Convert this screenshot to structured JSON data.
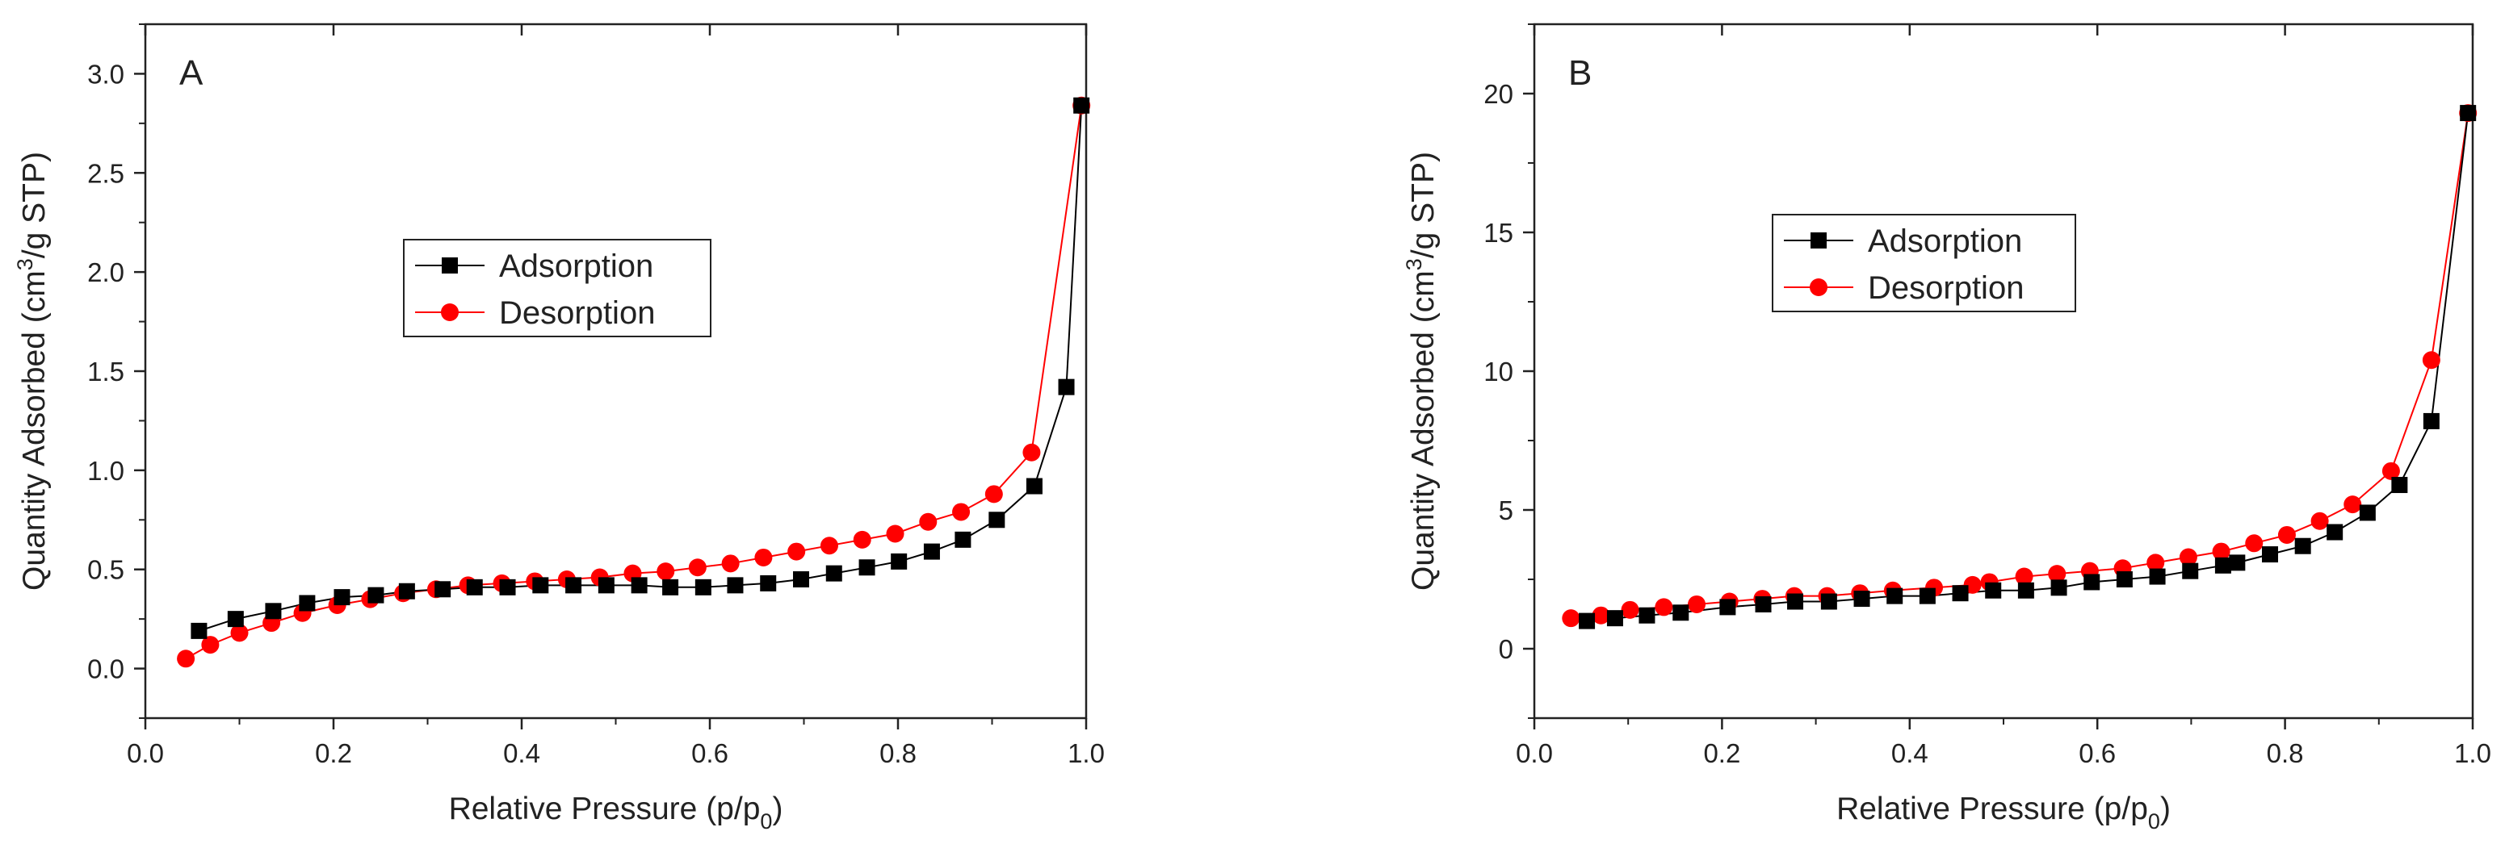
{
  "chart_data": [
    {
      "type": "scatter",
      "panel_label": "A",
      "xlabel": "Relative Pressure (p/p0)",
      "xlabel_main": "Relative Pressure (p/p",
      "xlabel_sub": "0",
      "xlabel_close": ")",
      "ylabel": "Quantity Adsorbed (cm3/g STP)",
      "ylabel_main": "Quantity Adsorbed (cm",
      "ylabel_sup": "3",
      "ylabel_rest": "/g STP)",
      "xlim": [
        0.0,
        1.0
      ],
      "ylim": [
        -0.25,
        3.25
      ],
      "x_ticks": [
        0.0,
        0.2,
        0.4,
        0.6,
        0.8,
        1.0
      ],
      "x_tick_labels": [
        "0.0",
        "0.2",
        "0.4",
        "0.6",
        "0.8",
        "1.0"
      ],
      "y_ticks": [
        0.0,
        0.5,
        1.0,
        1.5,
        2.0,
        2.5,
        3.0
      ],
      "y_tick_labels": [
        "0.0",
        "0.5",
        "1.0",
        "1.5",
        "2.0",
        "2.5",
        "3.0"
      ],
      "legend_position": "center-left",
      "series": [
        {
          "name": "Adsorption",
          "marker": "square",
          "color": "#000000",
          "x": [
            0.057,
            0.096,
            0.136,
            0.172,
            0.209,
            0.245,
            0.278,
            0.316,
            0.35,
            0.385,
            0.42,
            0.455,
            0.49,
            0.525,
            0.558,
            0.593,
            0.627,
            0.662,
            0.697,
            0.732,
            0.767,
            0.801,
            0.836,
            0.869,
            0.905,
            0.945,
            0.979,
            0.995
          ],
          "y": [
            0.19,
            0.25,
            0.29,
            0.33,
            0.36,
            0.37,
            0.39,
            0.4,
            0.41,
            0.41,
            0.42,
            0.42,
            0.42,
            0.42,
            0.41,
            0.41,
            0.42,
            0.43,
            0.45,
            0.48,
            0.51,
            0.54,
            0.59,
            0.65,
            0.75,
            0.92,
            1.42,
            2.84
          ]
        },
        {
          "name": "Desorption",
          "marker": "circle",
          "color": "#ff0000",
          "x": [
            0.043,
            0.069,
            0.1,
            0.134,
            0.167,
            0.204,
            0.239,
            0.274,
            0.309,
            0.343,
            0.379,
            0.414,
            0.448,
            0.483,
            0.518,
            0.553,
            0.587,
            0.622,
            0.657,
            0.692,
            0.727,
            0.762,
            0.797,
            0.832,
            0.867,
            0.902,
            0.942,
            0.995
          ],
          "y": [
            0.05,
            0.12,
            0.18,
            0.23,
            0.28,
            0.32,
            0.35,
            0.38,
            0.4,
            0.42,
            0.43,
            0.44,
            0.45,
            0.46,
            0.48,
            0.49,
            0.51,
            0.53,
            0.56,
            0.59,
            0.62,
            0.65,
            0.68,
            0.74,
            0.79,
            0.88,
            1.09,
            2.84
          ]
        }
      ]
    },
    {
      "type": "scatter",
      "panel_label": "B",
      "xlabel": "Relative Pressure (p/p0)",
      "xlabel_main": "Relative Pressure (p/p",
      "xlabel_sub": "0",
      "xlabel_close": ")",
      "ylabel": "Quantity Adsorbed (cm3/g STP)",
      "ylabel_main": "Quantity Adsorbed (cm",
      "ylabel_sup": "3",
      "ylabel_rest": "/g STP)",
      "xlim": [
        0.0,
        1.0
      ],
      "ylim": [
        -2.5,
        22.5
      ],
      "x_ticks": [
        0.0,
        0.2,
        0.4,
        0.6,
        0.8,
        1.0
      ],
      "x_tick_labels": [
        "0.0",
        "0.2",
        "0.4",
        "0.6",
        "0.8",
        "1.0"
      ],
      "y_ticks": [
        0,
        5,
        10,
        15,
        20
      ],
      "y_tick_labels": [
        "0",
        "5",
        "10",
        "15",
        "20"
      ],
      "legend_position": "top-left",
      "series": [
        {
          "name": "Adsorption",
          "marker": "square",
          "color": "#000000",
          "x": [
            0.056,
            0.086,
            0.12,
            0.156,
            0.206,
            0.244,
            0.278,
            0.314,
            0.349,
            0.384,
            0.419,
            0.454,
            0.489,
            0.524,
            0.559,
            0.594,
            0.629,
            0.664,
            0.699,
            0.734,
            0.749,
            0.784,
            0.819,
            0.853,
            0.888,
            0.922,
            0.956,
            0.995
          ],
          "y": [
            1.0,
            1.1,
            1.2,
            1.3,
            1.5,
            1.6,
            1.7,
            1.7,
            1.8,
            1.9,
            1.9,
            2.0,
            2.1,
            2.1,
            2.2,
            2.4,
            2.5,
            2.6,
            2.8,
            3.0,
            3.1,
            3.4,
            3.7,
            4.2,
            4.9,
            5.9,
            8.2,
            19.3
          ]
        },
        {
          "name": "Desorption",
          "marker": "circle",
          "color": "#ff0000",
          "x": [
            0.039,
            0.071,
            0.102,
            0.138,
            0.173,
            0.208,
            0.243,
            0.277,
            0.312,
            0.347,
            0.382,
            0.426,
            0.467,
            0.485,
            0.522,
            0.557,
            0.592,
            0.627,
            0.662,
            0.697,
            0.732,
            0.767,
            0.802,
            0.837,
            0.872,
            0.913,
            0.956,
            0.995
          ],
          "y": [
            1.1,
            1.2,
            1.4,
            1.5,
            1.6,
            1.7,
            1.8,
            1.9,
            1.9,
            2.0,
            2.1,
            2.2,
            2.3,
            2.4,
            2.6,
            2.7,
            2.8,
            2.9,
            3.1,
            3.3,
            3.5,
            3.8,
            4.1,
            4.6,
            5.2,
            6.4,
            10.4,
            19.3
          ]
        }
      ]
    }
  ]
}
